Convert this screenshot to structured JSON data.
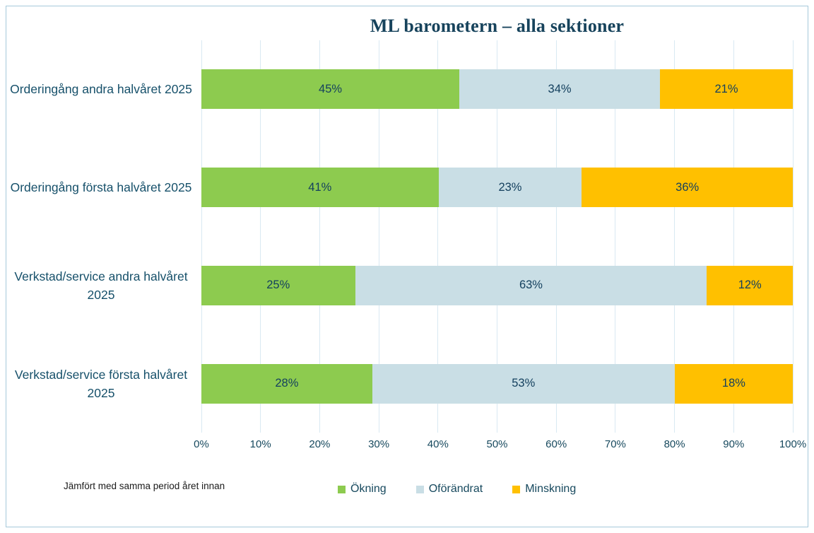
{
  "chart_data": {
    "type": "bar",
    "orientation": "horizontal-stacked",
    "title": "ML barometern – alla sektioner",
    "footnote": "Jämfört med samma period året innan",
    "categories": [
      "Orderingång andra halvåret 2025",
      "Orderingång första halvåret 2025",
      "Verkstad/service andra halvåret 2025",
      "Verkstad/service första halvåret 2025"
    ],
    "series": [
      {
        "name": "Ökning",
        "color": "#8DCB4F",
        "values": [
          45,
          41,
          25,
          28
        ]
      },
      {
        "name": "Oförändrat",
        "color": "#C9DEE5",
        "values": [
          34,
          23,
          63,
          53
        ]
      },
      {
        "name": "Minskning",
        "color": "#FFC000",
        "values": [
          21,
          36,
          12,
          18
        ]
      }
    ],
    "bar_label_suffix": "%",
    "x_ticks": [
      "0%",
      "10%",
      "20%",
      "30%",
      "40%",
      "50%",
      "60%",
      "70%",
      "80%",
      "90%",
      "100%"
    ],
    "xlim": [
      0,
      100
    ],
    "grid": "vertical",
    "legend_position": "bottom",
    "colors": {
      "title_text": "#17435C",
      "label_text": "#16506A",
      "bar_label_text": "#14405E",
      "tick_text": "#17495E",
      "footnote_text": "#1A1A1A",
      "gridline": "#D9E9F2",
      "frame_border": "#A6C9DB",
      "background": "#FFFFFF"
    }
  }
}
